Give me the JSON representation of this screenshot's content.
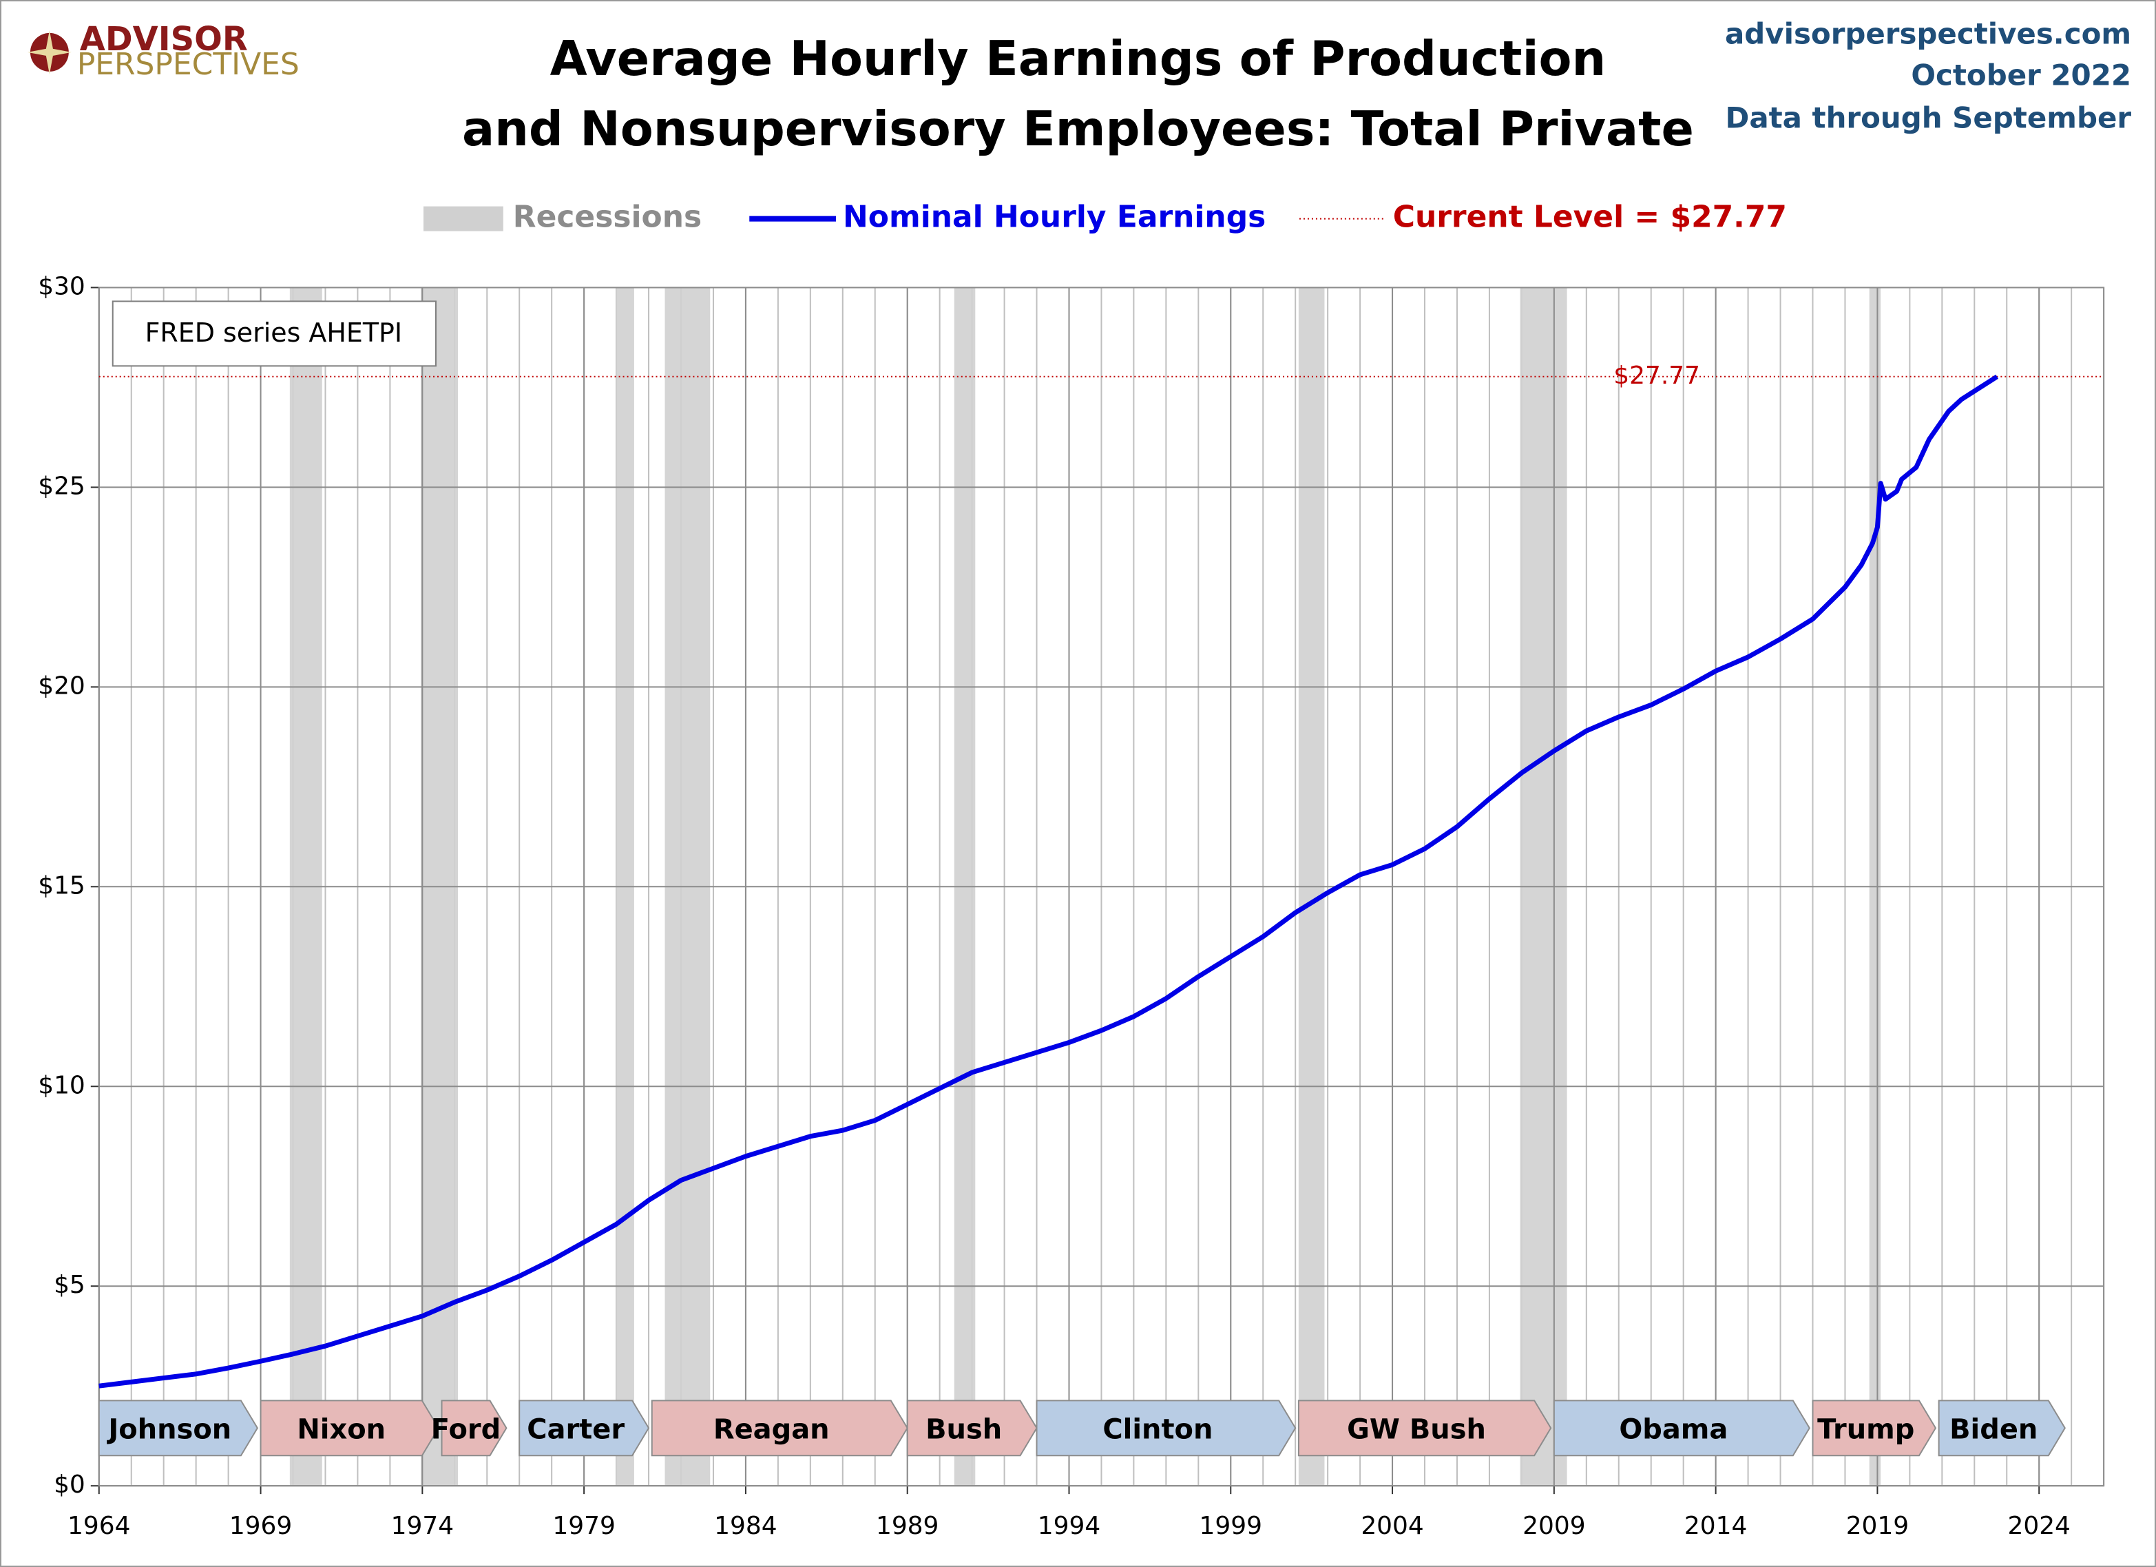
{
  "chart_data": {
    "type": "line",
    "title": [
      "Average Hourly Earnings of Production",
      "and Nonsupervisory Employees: Total Private"
    ],
    "logo": [
      "ADVISOR",
      "PERSPECTIVES"
    ],
    "source_lines": [
      "advisorperspectives.com",
      "October 2022",
      "Data through September"
    ],
    "note": "FRED series AHETPI",
    "recession_legend": "Recessions",
    "recession_color": "#d0d0d0",
    "recessions": [
      [
        1969.9,
        1970.9
      ],
      [
        1973.95,
        1975.1
      ],
      [
        1980.0,
        1980.55
      ],
      [
        1981.5,
        1982.9
      ],
      [
        1990.45,
        1991.1
      ],
      [
        2001.1,
        2001.9
      ],
      [
        2007.95,
        2009.4
      ],
      [
        2018.75,
        2019.1
      ]
    ],
    "current_level": {
      "value": 27.77,
      "label": "$27.77",
      "legend": "Current Level = $27.77",
      "color": "#c00000"
    },
    "series": [
      {
        "name": "Nominal Hourly Earnings",
        "color": "#0000e6",
        "x": [
          1964,
          1965,
          1966,
          1967,
          1968,
          1969,
          1970,
          1971,
          1972,
          1973,
          1974,
          1975,
          1976,
          1977,
          1978,
          1979,
          1980,
          1981,
          1982,
          1983,
          1984,
          1985,
          1986,
          1987,
          1988,
          1989,
          1990,
          1991,
          1992,
          1993,
          1994,
          1995,
          1996,
          1997,
          1998,
          1999,
          2000,
          2001,
          2002,
          2003,
          2004,
          2005,
          2006,
          2007,
          2008,
          2009,
          2010,
          2011,
          2012,
          2013,
          2014,
          2015,
          2016,
          2017,
          2018,
          2018.5,
          2018.85,
          2019.0,
          2019.1,
          2019.25,
          2019.6,
          2019.75,
          2020.2,
          2020.6,
          2021.2,
          2021.6,
          2022.7
        ],
        "values": [
          2.5,
          2.6,
          2.7,
          2.8,
          2.95,
          3.12,
          3.3,
          3.5,
          3.75,
          4.0,
          4.25,
          4.6,
          4.9,
          5.25,
          5.65,
          6.1,
          6.55,
          7.15,
          7.65,
          7.95,
          8.25,
          8.5,
          8.75,
          8.9,
          9.15,
          9.55,
          9.95,
          10.35,
          10.6,
          10.85,
          11.1,
          11.4,
          11.75,
          12.2,
          12.75,
          13.25,
          13.75,
          14.35,
          14.85,
          15.3,
          15.55,
          15.95,
          16.5,
          17.2,
          17.85,
          18.4,
          18.9,
          19.25,
          19.55,
          19.95,
          20.4,
          20.75,
          21.2,
          21.7,
          22.5,
          23.05,
          23.6,
          24.0,
          25.1,
          24.7,
          24.9,
          25.2,
          25.5,
          26.2,
          26.9,
          27.2,
          27.77
        ]
      }
    ],
    "presidents": [
      {
        "name": "Johnson",
        "start": 1964,
        "end": 1968.9,
        "color": "#b8cce4"
      },
      {
        "name": "Nixon",
        "start": 1969.0,
        "end": 1974.5,
        "color": "#e6b9b8"
      },
      {
        "name": "Ford",
        "start": 1974.6,
        "end": 1976.6,
        "color": "#e6b9b8"
      },
      {
        "name": "Carter",
        "start": 1977.0,
        "end": 1981.0,
        "color": "#b8cce4"
      },
      {
        "name": "Reagan",
        "start": 1981.1,
        "end": 1989.0,
        "color": "#e6b9b8"
      },
      {
        "name": "Bush",
        "start": 1989.0,
        "end": 1993.0,
        "color": "#e6b9b8"
      },
      {
        "name": "Clinton",
        "start": 1993.0,
        "end": 2001.0,
        "color": "#b8cce4"
      },
      {
        "name": "GW Bush",
        "start": 2001.1,
        "end": 2008.9,
        "color": "#e6b9b8"
      },
      {
        "name": "Obama",
        "start": 2009.0,
        "end": 2016.9,
        "color": "#b8cce4"
      },
      {
        "name": "Trump",
        "start": 2017.0,
        "end": 2020.8,
        "color": "#e6b9b8"
      },
      {
        "name": "Biden",
        "start": 2020.9,
        "end": 2024.8,
        "color": "#b8cce4"
      }
    ],
    "xlim": [
      1964,
      2026
    ],
    "xticks": [
      1964,
      1969,
      1974,
      1979,
      1984,
      1989,
      1994,
      1999,
      2004,
      2009,
      2014,
      2019,
      2024
    ],
    "minor_grid_step": 1,
    "ylim": [
      0,
      30
    ],
    "yticks": [
      {
        "value": 0,
        "label": "$0"
      },
      {
        "value": 5,
        "label": "$5"
      },
      {
        "value": 10,
        "label": "$10"
      },
      {
        "value": 15,
        "label": "$15"
      },
      {
        "value": 20,
        "label": "$20"
      },
      {
        "value": 25,
        "label": "$25"
      },
      {
        "value": 30,
        "label": "$30"
      }
    ],
    "grid": true
  }
}
